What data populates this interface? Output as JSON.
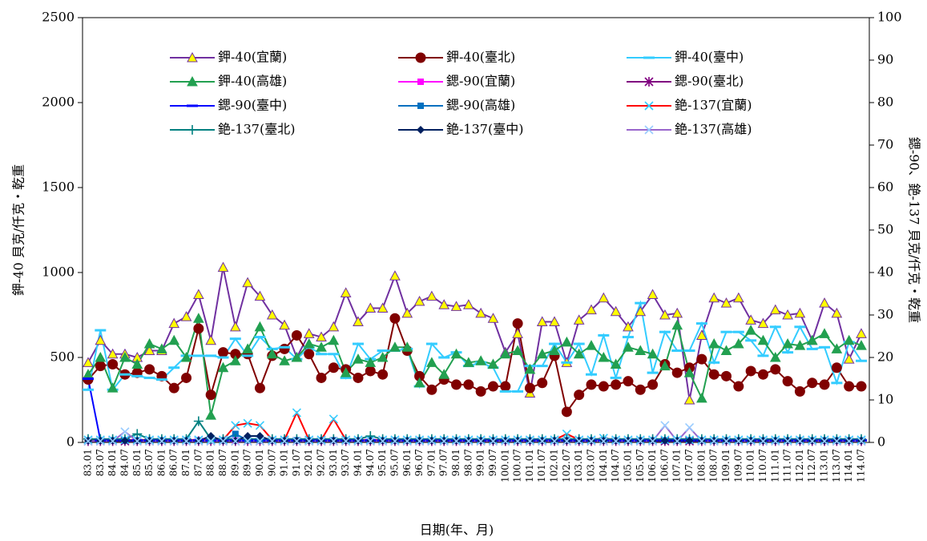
{
  "chart_data": {
    "type": "line",
    "xlabel": "日期(年、月)",
    "ylabel": "鉀-40 貝克/仟克‧乾重",
    "y2label": "鍶-90、銫-137 貝克/仟克‧乾重",
    "categories": [
      "83.01",
      "83.07",
      "84.01",
      "84.07",
      "85.01",
      "85.07",
      "86.01",
      "86.07",
      "87.01",
      "87.07",
      "88.01",
      "88.07",
      "89.01",
      "89.07",
      "90.01",
      "90.07",
      "91.01",
      "91.07",
      "92.01",
      "92.07",
      "93.01",
      "93.07",
      "94.01",
      "94.07",
      "95.01",
      "95.07",
      "96.01",
      "96.07",
      "97.01",
      "97.07",
      "98.01",
      "98.07",
      "99.01",
      "99.07",
      "100.01",
      "100.07",
      "101.01",
      "101.07",
      "102.01",
      "102.07",
      "103.01",
      "103.07",
      "104.01",
      "104.07",
      "105.01",
      "105.07",
      "106.01",
      "106.07",
      "107.01",
      "107.07",
      "108.01",
      "108.07",
      "109.01",
      "109.07",
      "110.01",
      "110.07",
      "111.01",
      "111.07",
      "112.01",
      "112.07",
      "113.01",
      "113.07",
      "114.01",
      "114.07"
    ],
    "ylim": [
      0,
      2500
    ],
    "yticks": [
      0,
      500,
      1000,
      1500,
      2000,
      2500
    ],
    "y2lim": [
      0,
      100
    ],
    "y2ticks": [
      0,
      10,
      20,
      30,
      40,
      50,
      60,
      70,
      80,
      90,
      100
    ],
    "legend": "top",
    "series": [
      {
        "name": "鉀-40(宜蘭)",
        "color": "#7030a0",
        "marker": "triangle",
        "marker_color": "#ffff00",
        "values": [
          470,
          600,
          520,
          520,
          500,
          540,
          540,
          700,
          740,
          870,
          600,
          1030,
          680,
          940,
          860,
          750,
          690,
          500,
          640,
          620,
          680,
          880,
          710,
          790,
          790,
          980,
          760,
          830,
          860,
          810,
          800,
          810,
          760,
          730,
          530,
          640,
          290,
          710,
          710,
          470,
          720,
          780,
          850,
          770,
          680,
          770,
          870,
          750,
          760,
          250,
          630,
          850,
          820,
          850,
          720,
          700,
          780,
          750,
          760,
          600,
          820,
          760,
          490,
          640
        ]
      },
      {
        "name": "鉀-40(臺北)",
        "color": "#800000",
        "marker": "circle",
        "marker_color": "#800000",
        "values": [
          370,
          450,
          460,
          400,
          410,
          430,
          390,
          320,
          380,
          670,
          280,
          530,
          520,
          520,
          320,
          510,
          550,
          630,
          520,
          380,
          440,
          430,
          380,
          420,
          400,
          730,
          540,
          390,
          310,
          370,
          340,
          340,
          300,
          330,
          330,
          700,
          320,
          350,
          510,
          180,
          280,
          340,
          330,
          340,
          360,
          310,
          340,
          460,
          410,
          440,
          490,
          400,
          390,
          330,
          420,
          400,
          430,
          360,
          300,
          350,
          340,
          440,
          330,
          330
        ]
      },
      {
        "name": "鉀-40(臺中)",
        "color": "#33ccff",
        "marker": "dash",
        "marker_color": "#33ccff",
        "values": [
          310,
          660,
          310,
          400,
          390,
          380,
          370,
          440,
          510,
          510,
          510,
          500,
          610,
          510,
          620,
          550,
          560,
          490,
          560,
          520,
          520,
          380,
          580,
          490,
          540,
          540,
          550,
          330,
          580,
          500,
          530,
          450,
          470,
          440,
          300,
          300,
          450,
          450,
          580,
          470,
          580,
          400,
          630,
          380,
          620,
          820,
          410,
          650,
          540,
          540,
          700,
          470,
          650,
          650,
          600,
          510,
          680,
          530,
          680,
          550,
          560,
          350,
          590,
          480
        ]
      },
      {
        "name": "鉀-40(高雄)",
        "color": "#22a050",
        "marker": "triangle",
        "marker_color": "#22a050",
        "values": [
          400,
          500,
          320,
          500,
          460,
          580,
          550,
          600,
          500,
          730,
          160,
          440,
          480,
          550,
          680,
          520,
          480,
          500,
          580,
          560,
          600,
          410,
          490,
          470,
          500,
          560,
          560,
          350,
          470,
          400,
          520,
          470,
          480,
          460,
          520,
          540,
          430,
          520,
          540,
          590,
          520,
          570,
          500,
          460,
          560,
          540,
          520,
          450,
          690,
          410,
          260,
          580,
          540,
          580,
          660,
          600,
          500,
          580,
          570,
          600,
          640,
          550,
          600,
          570
        ]
      },
      {
        "name": "鍶-90(宜蘭)",
        "color": "#ff00ff",
        "marker": "square",
        "marker_color": "#ff00ff",
        "axis": "y2",
        "values": [
          0.4,
          0.4,
          0.4,
          0.4,
          0.4,
          0.4,
          0.4,
          0.4,
          0.4,
          0.4,
          0.4,
          0.4,
          0.4,
          0.4,
          0.4,
          0.4,
          0.4,
          0.4,
          0.4,
          0.4,
          0.4,
          0.4,
          0.4,
          0.4,
          0.4,
          0.4,
          0.4,
          0.4,
          0.4,
          0.4,
          0.4,
          0.4,
          0.4,
          0.4,
          0.4,
          0.4,
          0.4,
          0.4,
          0.4,
          0.4,
          0.4,
          0.4,
          0.4,
          0.4,
          0.4,
          0.4,
          0.4,
          0.4,
          0.4,
          0.4,
          0.4,
          0.4,
          0.4,
          0.4,
          0.4,
          0.4,
          0.4,
          0.4,
          0.4,
          0.4,
          0.4,
          0.4,
          0.4,
          0.4
        ]
      },
      {
        "name": "鍶-90(臺北)",
        "color": "#800080",
        "marker": "star",
        "marker_color": "#800080",
        "axis": "y2",
        "values": [
          0.3,
          0.3,
          0.3,
          0.3,
          0.3,
          0.3,
          0.3,
          0.3,
          0.3,
          0.3,
          0.3,
          0.3,
          0.3,
          0.3,
          0.3,
          0.3,
          0.3,
          0.3,
          0.3,
          0.3,
          0.3,
          0.3,
          0.3,
          0.3,
          0.3,
          0.3,
          0.3,
          0.3,
          0.3,
          0.3,
          0.3,
          0.3,
          0.3,
          0.3,
          0.3,
          0.3,
          0.3,
          0.3,
          0.3,
          0.3,
          0.3,
          0.3,
          0.3,
          0.3,
          0.3,
          0.3,
          0.3,
          0.3,
          0.3,
          0.3,
          0.3,
          0.3,
          0.3,
          0.3,
          0.3,
          0.3,
          0.3,
          0.3,
          0.3,
          0.3,
          0.3,
          0.3,
          0.3,
          0.3
        ]
      },
      {
        "name": "鍶-90(臺中)",
        "color": "#0000ff",
        "marker": "dash",
        "marker_color": "#0000ff",
        "axis": "y2",
        "values": [
          15,
          0.5,
          0.5,
          0.5,
          0.5,
          0.5,
          0.5,
          0.5,
          0.5,
          0.5,
          0.5,
          0.5,
          0.5,
          0.5,
          0.5,
          0.5,
          0.5,
          0.5,
          0.5,
          0.5,
          0.5,
          0.5,
          0.5,
          0.5,
          0.5,
          0.5,
          0.5,
          0.5,
          0.5,
          0.5,
          0.5,
          0.5,
          0.5,
          0.5,
          0.5,
          0.5,
          0.5,
          0.5,
          0.5,
          0.5,
          0.5,
          0.5,
          0.5,
          0.5,
          0.5,
          0.5,
          0.5,
          0.5,
          0.5,
          0.5,
          0.5,
          0.5,
          0.5,
          0.5,
          0.5,
          0.5,
          0.5,
          0.5,
          0.5,
          0.5,
          0.5,
          0.5,
          0.5,
          0.5
        ]
      },
      {
        "name": "鍶-90(高雄)",
        "color": "#0070c0",
        "marker": "square",
        "marker_color": "#0070c0",
        "axis": "y2",
        "values": [
          0.5,
          0.5,
          0.5,
          0.5,
          0.5,
          0.5,
          0.5,
          0.5,
          0.5,
          0.5,
          0.5,
          0.5,
          2,
          0.5,
          0.5,
          0.5,
          0.5,
          0.5,
          0.5,
          0.5,
          0.5,
          0.5,
          0.5,
          0.5,
          0.5,
          0.5,
          0.5,
          0.5,
          0.5,
          0.5,
          0.5,
          0.5,
          0.5,
          0.5,
          0.5,
          0.5,
          0.5,
          0.5,
          0.5,
          0.5,
          0.5,
          0.5,
          0.5,
          0.5,
          0.5,
          0.5,
          0.5,
          0.5,
          0.5,
          0.5,
          0.5,
          0.5,
          0.5,
          0.5,
          0.5,
          0.5,
          0.5,
          0.5,
          0.5,
          0.5,
          0.5,
          0.5,
          0.5,
          0.5
        ]
      },
      {
        "name": "銫-137(宜蘭)",
        "color": "#ff0000",
        "marker": "x",
        "marker_color": "#33ccff",
        "axis": "y2",
        "values": [
          0.6,
          0.6,
          0.6,
          0.6,
          0.6,
          0.6,
          0.6,
          0.6,
          0.6,
          0.6,
          0.6,
          0.6,
          4,
          4.5,
          4,
          0.6,
          0.6,
          7,
          0.6,
          0.6,
          5.5,
          0.6,
          0.6,
          0.6,
          0.6,
          0.6,
          0.6,
          0.6,
          0.6,
          0.6,
          0.6,
          0.6,
          0.6,
          0.6,
          0.6,
          0.6,
          0.6,
          0.6,
          0.6,
          2,
          0.6,
          0.6,
          1,
          0.6,
          0.6,
          0.6,
          0.6,
          0.6,
          0.6,
          0.6,
          0.6,
          0.6,
          0.6,
          0.6,
          0.6,
          0.6,
          0.6,
          0.6,
          0.6,
          0.6,
          0.6,
          0.6,
          0.6,
          0.6
        ]
      },
      {
        "name": "銫-137(臺北)",
        "color": "#008080",
        "marker": "plus",
        "marker_color": "#008080",
        "axis": "y2",
        "values": [
          0.8,
          0.8,
          0.8,
          0.8,
          2,
          0.8,
          0.8,
          0.8,
          0.8,
          5,
          0.8,
          0.8,
          0.8,
          0.8,
          0.8,
          0.8,
          0.8,
          0.8,
          0.8,
          0.8,
          0.8,
          0.8,
          0.8,
          1.5,
          0.8,
          0.8,
          0.8,
          0.8,
          0.8,
          0.8,
          0.8,
          0.8,
          0.8,
          0.8,
          0.8,
          0.8,
          0.8,
          0.8,
          0.8,
          0.8,
          0.8,
          0.8,
          0.8,
          0.8,
          0.8,
          0.8,
          0.8,
          0.8,
          0.8,
          0.8,
          0.8,
          0.8,
          0.8,
          0.8,
          0.8,
          0.8,
          0.8,
          0.8,
          0.8,
          0.8,
          0.8,
          0.8,
          0.8,
          0.8
        ]
      },
      {
        "name": "銫-137(臺中)",
        "color": "#002060",
        "marker": "diamond",
        "marker_color": "#002060",
        "axis": "y2",
        "values": [
          0.4,
          0.4,
          0.4,
          0.4,
          0.4,
          0.4,
          0.4,
          0.4,
          0.4,
          0.4,
          1.5,
          0.4,
          0.4,
          1.5,
          1.5,
          0.4,
          0.4,
          0.4,
          0.4,
          0.4,
          0.4,
          0.4,
          0.4,
          0.4,
          0.4,
          0.4,
          0.4,
          0.4,
          0.4,
          0.4,
          0.4,
          0.4,
          0.4,
          0.4,
          0.4,
          0.4,
          0.4,
          0.4,
          0.4,
          0.4,
          0.4,
          0.4,
          0.4,
          0.4,
          0.4,
          0.4,
          0.4,
          0.4,
          0.4,
          0.4,
          0.4,
          0.4,
          0.4,
          0.4,
          0.4,
          0.4,
          0.4,
          0.4,
          0.4,
          0.4,
          0.4,
          0.4,
          0.4,
          0.4
        ]
      },
      {
        "name": "銫-137(高雄)",
        "color": "#9966cc",
        "marker": "x",
        "marker_color": "#99ccff",
        "axis": "y2",
        "values": [
          0.3,
          0.3,
          0.3,
          2.5,
          0.3,
          0.3,
          0.3,
          0.3,
          0.3,
          0.3,
          0.3,
          0.3,
          0.3,
          0.3,
          0.3,
          0.3,
          0.3,
          0.3,
          0.3,
          0.3,
          0.3,
          0.3,
          0.3,
          0.3,
          0.3,
          0.3,
          0.3,
          0.3,
          0.3,
          0.3,
          0.3,
          0.3,
          0.3,
          0.3,
          0.3,
          0.3,
          0.3,
          0.3,
          0.3,
          0.3,
          0.3,
          0.3,
          0.3,
          0.3,
          0.3,
          0.3,
          0.3,
          4,
          0.3,
          3.5,
          0.3,
          0.3,
          0.3,
          0.3,
          0.3,
          0.3,
          0.3,
          0.3,
          0.3,
          0.3,
          0.3,
          0.3,
          0.3,
          0.3
        ]
      }
    ]
  }
}
